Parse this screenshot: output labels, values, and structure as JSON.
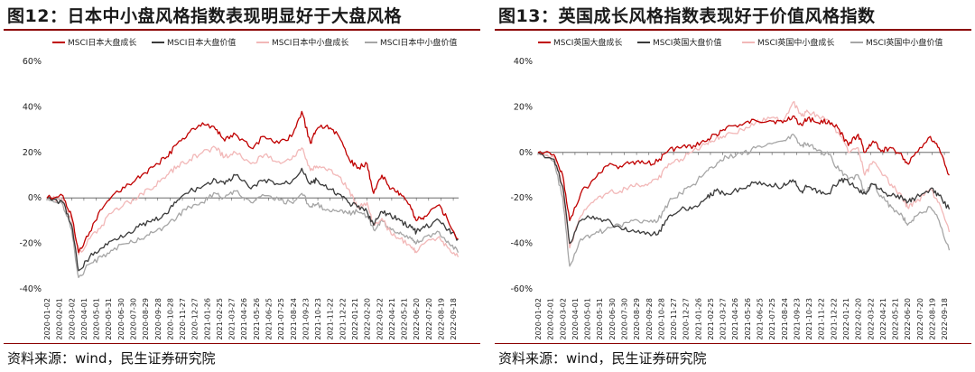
{
  "colors": {
    "large_growth": "#c00000",
    "large_value": "#3a3a3a",
    "small_growth": "#f2b8b8",
    "small_value": "#a6a6a6",
    "rule": "#8b0000"
  },
  "x_tick_labels": [
    "2020-01-02",
    "2020-02-01",
    "2020-03-02",
    "2020-04-01",
    "2020-05-01",
    "2020-05-31",
    "2020-06-30",
    "2020-07-30",
    "2020-08-29",
    "2020-09-28",
    "2020-10-28",
    "2020-11-27",
    "2020-12-27",
    "2021-01-26",
    "2021-02-25",
    "2021-03-27",
    "2021-04-26",
    "2021-05-26",
    "2021-06-25",
    "2021-07-25",
    "2021-08-24",
    "2021-09-23",
    "2021-10-23",
    "2021-11-22",
    "2021-12-22",
    "2022-01-21",
    "2022-02-20",
    "2022-03-22",
    "2022-04-21",
    "2022-05-21",
    "2022-06-20",
    "2022-07-20",
    "2022-08-19",
    "2022-09-18"
  ],
  "chart_data": [
    {
      "type": "line",
      "title": "图12：日本中小盘风格指数表现明显好于大盘风格",
      "source": "资料来源：wind，民生证券研究院",
      "y_ticks": [
        "60%",
        "40%",
        "20%",
        "0%",
        "-20%",
        "-40%"
      ],
      "ylim": [
        -40,
        60
      ],
      "x_range": [
        "2020-01-02",
        "2022-10-01"
      ],
      "legend_position": "top",
      "series": [
        {
          "name": "MSCI日本大盘成长",
          "color_key": "large_growth",
          "x": [
            "2020-01-02",
            "2020-02-10",
            "2020-03-02",
            "2020-03-19",
            "2020-04-15",
            "2020-05-15",
            "2020-06-15",
            "2020-07-20",
            "2020-08-20",
            "2020-09-20",
            "2020-10-20",
            "2020-11-15",
            "2020-12-15",
            "2021-01-15",
            "2021-02-16",
            "2021-03-10",
            "2021-04-05",
            "2021-05-13",
            "2021-06-15",
            "2021-07-20",
            "2021-08-20",
            "2021-09-14",
            "2021-10-05",
            "2021-10-20",
            "2021-11-15",
            "2021-12-10",
            "2022-01-05",
            "2022-01-27",
            "2022-02-20",
            "2022-03-08",
            "2022-03-28",
            "2022-04-20",
            "2022-05-12",
            "2022-06-08",
            "2022-06-20",
            "2022-07-10",
            "2022-08-15",
            "2022-09-05",
            "2022-09-30"
          ],
          "values": [
            0,
            1,
            -8,
            -24,
            -15,
            -5,
            2,
            6,
            10,
            14,
            18,
            24,
            29,
            33,
            30,
            25,
            28,
            22,
            27,
            24,
            27,
            38,
            24,
            30,
            32,
            28,
            18,
            13,
            15,
            2,
            10,
            4,
            2,
            -5,
            -10,
            -8,
            -3,
            -10,
            -18
          ]
        },
        {
          "name": "MSCI日本大盘价值",
          "color_key": "large_value",
          "x": [
            "2020-01-02",
            "2020-02-10",
            "2020-03-02",
            "2020-03-19",
            "2020-04-15",
            "2020-05-15",
            "2020-06-15",
            "2020-07-20",
            "2020-08-20",
            "2020-09-20",
            "2020-10-20",
            "2020-11-15",
            "2020-12-15",
            "2021-01-15",
            "2021-02-16",
            "2021-03-10",
            "2021-04-05",
            "2021-05-13",
            "2021-06-15",
            "2021-07-20",
            "2021-08-20",
            "2021-09-14",
            "2021-10-05",
            "2021-10-20",
            "2021-11-15",
            "2021-12-10",
            "2022-01-05",
            "2022-01-27",
            "2022-02-20",
            "2022-03-08",
            "2022-03-28",
            "2022-04-20",
            "2022-05-12",
            "2022-06-08",
            "2022-06-20",
            "2022-07-10",
            "2022-08-15",
            "2022-09-05",
            "2022-09-30"
          ],
          "values": [
            0,
            -2,
            -12,
            -32,
            -26,
            -22,
            -18,
            -15,
            -12,
            -10,
            -7,
            -1,
            3,
            5,
            8,
            6,
            10,
            4,
            8,
            6,
            7,
            13,
            6,
            8,
            4,
            2,
            -2,
            -4,
            -6,
            -12,
            -6,
            -8,
            -10,
            -13,
            -15,
            -13,
            -10,
            -14,
            -18
          ]
        },
        {
          "name": "MSCI日本中小盘成长",
          "color_key": "small_growth",
          "x": [
            "2020-01-02",
            "2020-02-10",
            "2020-03-02",
            "2020-03-19",
            "2020-04-15",
            "2020-05-15",
            "2020-06-15",
            "2020-07-20",
            "2020-08-20",
            "2020-09-20",
            "2020-10-20",
            "2020-11-15",
            "2020-12-15",
            "2021-01-15",
            "2021-02-16",
            "2021-03-10",
            "2021-04-05",
            "2021-05-13",
            "2021-06-15",
            "2021-07-20",
            "2021-08-20",
            "2021-09-14",
            "2021-10-05",
            "2021-10-20",
            "2021-11-15",
            "2021-12-10",
            "2022-01-05",
            "2022-01-27",
            "2022-02-20",
            "2022-03-08",
            "2022-03-28",
            "2022-04-20",
            "2022-05-12",
            "2022-06-08",
            "2022-06-20",
            "2022-07-10",
            "2022-08-15",
            "2022-09-05",
            "2022-09-30"
          ],
          "values": [
            0,
            -1,
            -10,
            -25,
            -18,
            -12,
            -5,
            -2,
            2,
            5,
            10,
            14,
            17,
            20,
            22,
            18,
            20,
            15,
            19,
            16,
            17,
            22,
            12,
            14,
            12,
            10,
            4,
            -4,
            -2,
            -12,
            -9,
            -16,
            -18,
            -22,
            -24,
            -20,
            -17,
            -22,
            -26
          ]
        },
        {
          "name": "MSCI日本中小盘价值",
          "color_key": "small_value",
          "x": [
            "2020-01-02",
            "2020-02-10",
            "2020-03-02",
            "2020-03-19",
            "2020-04-15",
            "2020-05-15",
            "2020-06-15",
            "2020-07-20",
            "2020-08-20",
            "2020-09-20",
            "2020-10-20",
            "2020-11-15",
            "2020-12-15",
            "2021-01-15",
            "2021-02-16",
            "2021-03-10",
            "2021-04-05",
            "2021-05-13",
            "2021-06-15",
            "2021-07-20",
            "2021-08-20",
            "2021-09-14",
            "2021-10-05",
            "2021-10-20",
            "2021-11-15",
            "2021-12-10",
            "2022-01-05",
            "2022-01-27",
            "2022-02-20",
            "2022-03-08",
            "2022-03-28",
            "2022-04-20",
            "2022-05-12",
            "2022-06-08",
            "2022-06-20",
            "2022-07-10",
            "2022-08-15",
            "2022-09-05",
            "2022-09-30"
          ],
          "values": [
            0,
            -3,
            -14,
            -35,
            -29,
            -26,
            -22,
            -20,
            -18,
            -15,
            -12,
            -8,
            -4,
            -2,
            2,
            0,
            3,
            -2,
            1,
            -1,
            -2,
            2,
            -4,
            -3,
            -5,
            -6,
            -7,
            -6,
            -8,
            -14,
            -10,
            -14,
            -15,
            -18,
            -20,
            -17,
            -15,
            -19,
            -24
          ]
        }
      ]
    },
    {
      "type": "line",
      "title": "图13：英国成长风格指数表现好于价值风格指数",
      "source": "资料来源：wind，民生证券研究院",
      "y_ticks": [
        "40%",
        "20%",
        "0%",
        "-20%",
        "-40%",
        "-60%"
      ],
      "ylim": [
        -60,
        40
      ],
      "x_range": [
        "2020-01-02",
        "2022-10-01"
      ],
      "legend_position": "top",
      "series": [
        {
          "name": "MSCI英国大盘成长",
          "color_key": "large_growth",
          "x": [
            "2020-01-02",
            "2020-02-10",
            "2020-03-02",
            "2020-03-19",
            "2020-04-15",
            "2020-05-15",
            "2020-06-15",
            "2020-07-20",
            "2020-08-20",
            "2020-09-20",
            "2020-10-20",
            "2020-11-15",
            "2020-12-15",
            "2021-01-15",
            "2021-02-16",
            "2021-03-10",
            "2021-04-05",
            "2021-05-13",
            "2021-06-15",
            "2021-07-20",
            "2021-08-20",
            "2021-09-14",
            "2021-10-05",
            "2021-10-20",
            "2021-11-15",
            "2021-12-10",
            "2022-01-05",
            "2022-01-27",
            "2022-02-20",
            "2022-03-08",
            "2022-03-28",
            "2022-04-20",
            "2022-05-12",
            "2022-06-08",
            "2022-06-20",
            "2022-07-10",
            "2022-08-15",
            "2022-09-05",
            "2022-09-30"
          ],
          "values": [
            0,
            -1,
            -10,
            -30,
            -18,
            -12,
            -6,
            -6,
            -4,
            -5,
            -4,
            1,
            2,
            3,
            5,
            8,
            11,
            12,
            14,
            14,
            13,
            16,
            12,
            15,
            13,
            14,
            10,
            3,
            8,
            0,
            5,
            1,
            2,
            -2,
            -5,
            0,
            7,
            2,
            -10
          ]
        },
        {
          "name": "MSCI英国大盘价值",
          "color_key": "large_value",
          "x": [
            "2020-01-02",
            "2020-02-10",
            "2020-03-02",
            "2020-03-19",
            "2020-04-15",
            "2020-05-15",
            "2020-06-15",
            "2020-07-20",
            "2020-08-20",
            "2020-09-20",
            "2020-10-20",
            "2020-11-15",
            "2020-12-15",
            "2021-01-15",
            "2021-02-16",
            "2021-03-10",
            "2021-04-05",
            "2021-05-13",
            "2021-06-15",
            "2021-07-20",
            "2021-08-20",
            "2021-09-14",
            "2021-10-05",
            "2021-10-20",
            "2021-11-15",
            "2021-12-10",
            "2022-01-05",
            "2022-01-27",
            "2022-02-20",
            "2022-03-08",
            "2022-03-28",
            "2022-04-20",
            "2022-05-12",
            "2022-06-08",
            "2022-06-20",
            "2022-07-10",
            "2022-08-15",
            "2022-09-05",
            "2022-09-30"
          ],
          "values": [
            0,
            -3,
            -15,
            -40,
            -30,
            -28,
            -30,
            -33,
            -34,
            -36,
            -36,
            -28,
            -25,
            -24,
            -20,
            -17,
            -18,
            -16,
            -13,
            -14,
            -15,
            -12,
            -17,
            -15,
            -17,
            -18,
            -12,
            -13,
            -16,
            -18,
            -14,
            -17,
            -19,
            -20,
            -22,
            -20,
            -16,
            -19,
            -25
          ]
        },
        {
          "name": "MSCI英国中小盘成长",
          "color_key": "small_growth",
          "x": [
            "2020-01-02",
            "2020-02-10",
            "2020-03-02",
            "2020-03-19",
            "2020-04-15",
            "2020-05-15",
            "2020-06-15",
            "2020-07-20",
            "2020-08-20",
            "2020-09-20",
            "2020-10-20",
            "2020-11-15",
            "2020-12-15",
            "2021-01-15",
            "2021-02-16",
            "2021-03-10",
            "2021-04-05",
            "2021-05-13",
            "2021-06-15",
            "2021-07-20",
            "2021-08-20",
            "2021-09-14",
            "2021-10-05",
            "2021-10-20",
            "2021-11-15",
            "2021-12-10",
            "2022-01-05",
            "2022-01-27",
            "2022-02-20",
            "2022-03-08",
            "2022-03-28",
            "2022-04-20",
            "2022-05-12",
            "2022-06-08",
            "2022-06-20",
            "2022-07-10",
            "2022-08-15",
            "2022-09-05",
            "2022-09-30"
          ],
          "values": [
            0,
            -2,
            -15,
            -42,
            -28,
            -22,
            -18,
            -17,
            -15,
            -14,
            -12,
            -5,
            -3,
            1,
            4,
            6,
            8,
            10,
            13,
            15,
            14,
            22,
            16,
            18,
            16,
            14,
            8,
            0,
            2,
            -10,
            -4,
            -10,
            -14,
            -20,
            -24,
            -22,
            -16,
            -22,
            -35
          ]
        },
        {
          "name": "MSCI英国中小盘价值",
          "color_key": "small_value",
          "x": [
            "2020-01-02",
            "2020-02-10",
            "2020-03-02",
            "2020-03-19",
            "2020-04-15",
            "2020-05-15",
            "2020-06-15",
            "2020-07-20",
            "2020-08-20",
            "2020-09-20",
            "2020-10-20",
            "2020-11-15",
            "2020-12-15",
            "2021-01-15",
            "2021-02-16",
            "2021-03-10",
            "2021-04-05",
            "2021-05-13",
            "2021-06-15",
            "2021-07-20",
            "2021-08-20",
            "2021-09-14",
            "2021-10-05",
            "2021-10-20",
            "2021-11-15",
            "2021-12-10",
            "2022-01-05",
            "2022-01-27",
            "2022-02-20",
            "2022-03-08",
            "2022-03-28",
            "2022-04-20",
            "2022-05-12",
            "2022-06-08",
            "2022-06-20",
            "2022-07-10",
            "2022-08-15",
            "2022-09-05",
            "2022-09-30"
          ],
          "values": [
            0,
            -4,
            -20,
            -50,
            -38,
            -36,
            -34,
            -32,
            -30,
            -30,
            -30,
            -22,
            -18,
            -14,
            -8,
            -6,
            -2,
            -1,
            2,
            4,
            5,
            8,
            3,
            4,
            1,
            -1,
            -8,
            -12,
            -10,
            -18,
            -14,
            -20,
            -24,
            -28,
            -32,
            -28,
            -24,
            -30,
            -43
          ]
        }
      ]
    }
  ]
}
